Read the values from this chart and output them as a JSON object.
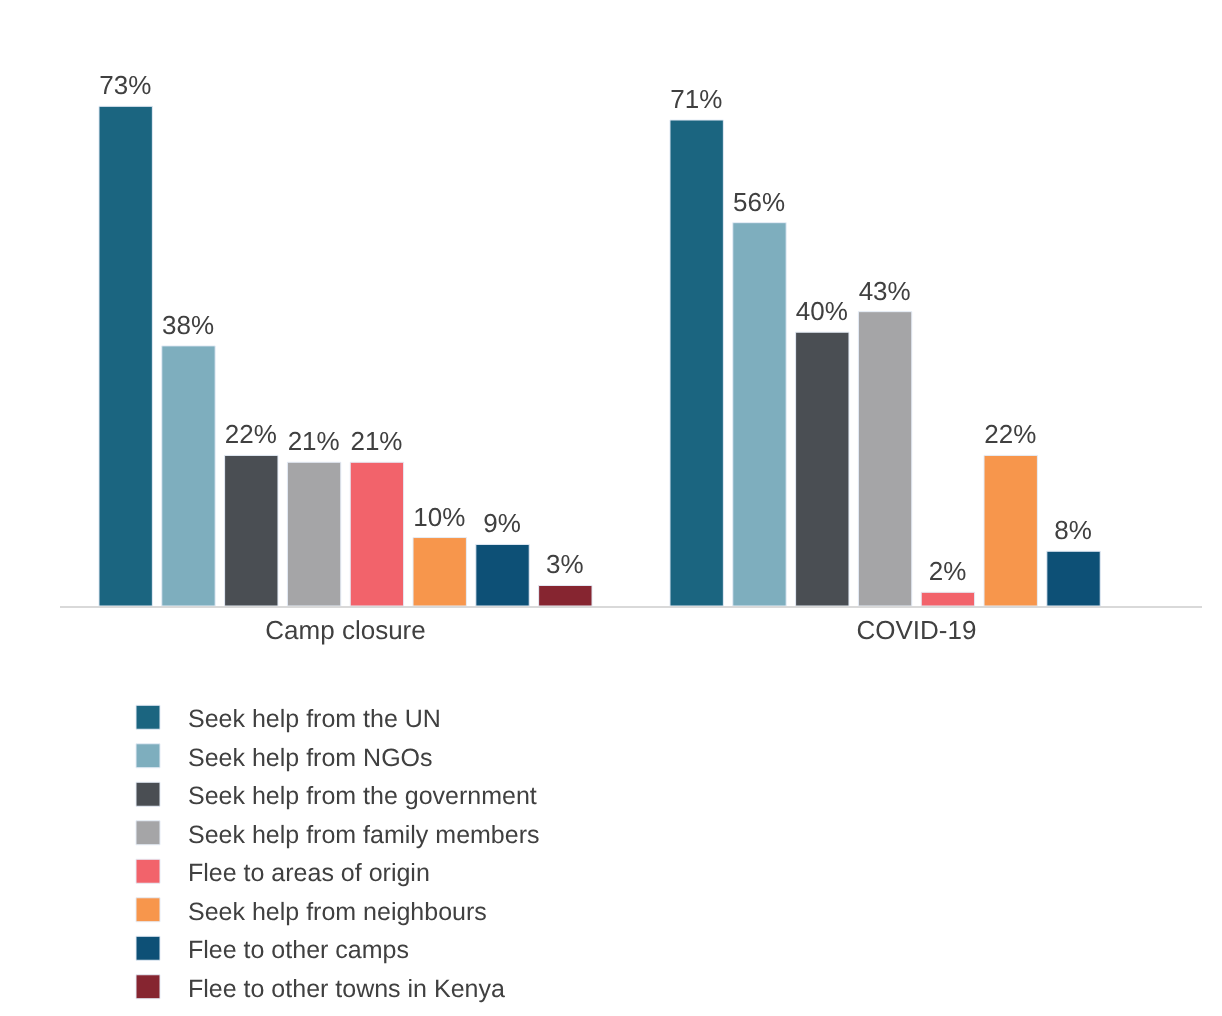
{
  "chart_data": {
    "type": "bar",
    "categories": [
      "Camp closure",
      "COVID-19"
    ],
    "series": [
      {
        "name": "Seek help from the UN",
        "color": "#1b6580",
        "values": [
          73,
          71
        ],
        "value_labels": [
          "73%",
          "71%"
        ]
      },
      {
        "name": "Seek help from NGOs",
        "color": "#7eaebe",
        "values": [
          38,
          56
        ],
        "value_labels": [
          "38%",
          "56%"
        ]
      },
      {
        "name": "Seek help from the government",
        "color": "#4a4e53",
        "values": [
          22,
          40
        ],
        "value_labels": [
          "22%",
          "40%"
        ]
      },
      {
        "name": "Seek help from family members",
        "color": "#a5a5a7",
        "values": [
          21,
          43
        ],
        "value_labels": [
          "21%",
          "43%"
        ]
      },
      {
        "name": "Flee to areas of origin",
        "color": "#f2636b",
        "values": [
          21,
          2
        ],
        "value_labels": [
          "21%",
          "2%"
        ]
      },
      {
        "name": "Seek help from neighbours",
        "color": "#f7964c",
        "values": [
          10,
          22
        ],
        "value_labels": [
          "10%",
          "22%"
        ]
      },
      {
        "name": "Flee to other camps",
        "color": "#0d5076",
        "values": [
          9,
          8
        ],
        "value_labels": [
          "9%",
          "8%"
        ]
      },
      {
        "name": "Flee to other towns in Kenya",
        "color": "#862530",
        "values": [
          3,
          null
        ],
        "value_labels": [
          "3%",
          null
        ]
      }
    ],
    "legend": "bottom"
  }
}
